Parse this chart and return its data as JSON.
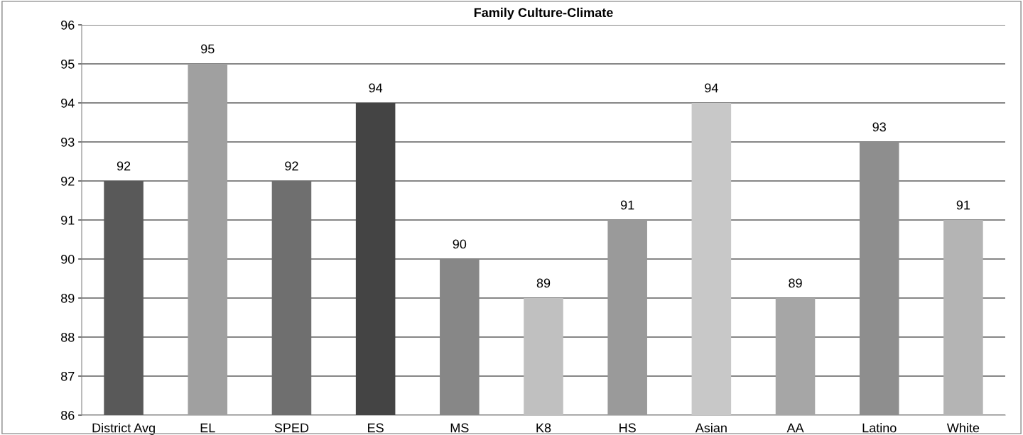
{
  "chart_data": {
    "type": "bar",
    "title": "Family Culture-Climate",
    "categories": [
      "District Avg",
      "EL",
      "SPED",
      "ES",
      "MS",
      "K8",
      "HS",
      "Asian",
      "AA",
      "Latino",
      "White"
    ],
    "values": [
      92,
      95,
      92,
      94,
      90,
      89,
      91,
      94,
      89,
      93,
      91
    ],
    "colors": [
      "#595959",
      "#a0a0a0",
      "#6f6f6f",
      "#444444",
      "#878787",
      "#c0c0c0",
      "#9a9a9a",
      "#c8c8c8",
      "#a6a6a6",
      "#8e8e8e",
      "#b4b4b4"
    ],
    "ylim": [
      86,
      96
    ],
    "yticks": [
      86,
      87,
      88,
      89,
      90,
      91,
      92,
      93,
      94,
      95,
      96
    ],
    "grid": "y",
    "data_labels": true
  }
}
